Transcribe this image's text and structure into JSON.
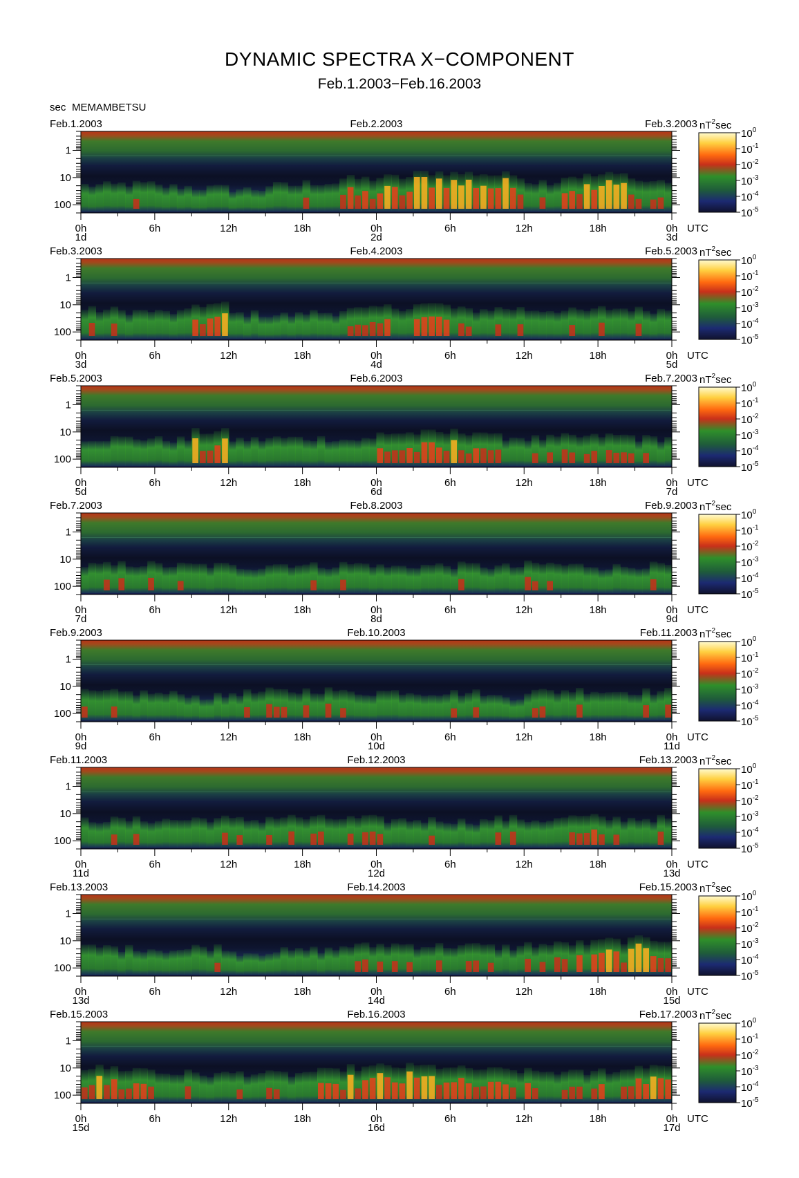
{
  "figure": {
    "title": "DYNAMIC SPECTRA X−COMPONENT",
    "subtitle": "Feb.1.2003−Feb.16.2003",
    "y_unit": "sec",
    "station": "MEMAMBETSU",
    "cbar_unit": "nT",
    "cbar_unit_sup": "2",
    "cbar_unit_suffix": "sec",
    "time_zone": "UTC"
  },
  "chart_data": {
    "type": "heatmap",
    "component": "X",
    "y_axis": {
      "label": "sec",
      "ticks": [
        "1",
        "10",
        "100"
      ],
      "scale": "log",
      "range": [
        0.2,
        200
      ]
    },
    "x_axis": {
      "ticks": [
        "0h",
        "6h",
        "12h",
        "18h",
        "0h",
        "6h",
        "12h",
        "18h",
        "0h"
      ],
      "unit": "UTC"
    },
    "colorbar": {
      "unit": "nT²sec",
      "scale": "log",
      "range": [
        1e-05,
        1
      ],
      "ticks": [
        {
          "base": "10",
          "exp": "0"
        },
        {
          "base": "10",
          "exp": "-1"
        },
        {
          "base": "10",
          "exp": "-2"
        },
        {
          "base": "10",
          "exp": "-3"
        },
        {
          "base": "10",
          "exp": "-4"
        },
        {
          "base": "10",
          "exp": "-5"
        }
      ],
      "colors": [
        "#10122e",
        "#1c2a72",
        "#1f5c3a",
        "#2f8f2a",
        "#c8301a",
        "#ff6a10",
        "#ffd040",
        "#fffbd0"
      ]
    },
    "panels": [
      {
        "start_date": "Feb.1.2003",
        "mid_date": "Feb.2.2003",
        "end_date": "Feb.3.2003",
        "day_labels": [
          "1d",
          "2d",
          "3d"
        ],
        "activity": [
          0.45,
          0.5,
          0.4,
          0.35,
          0.3,
          0.45,
          0.55,
          0.7,
          0.75,
          0.95,
          0.9,
          0.85,
          0.6,
          0.8,
          0.85,
          0.6
        ]
      },
      {
        "start_date": "Feb.3.2003",
        "mid_date": "Feb.4.2003",
        "end_date": "Feb.5.2003",
        "day_labels": [
          "3d",
          "4d",
          "5d"
        ],
        "activity": [
          0.55,
          0.5,
          0.45,
          0.75,
          0.4,
          0.35,
          0.45,
          0.55,
          0.65,
          0.75,
          0.55,
          0.6,
          0.55,
          0.5,
          0.6,
          0.55
        ]
      },
      {
        "start_date": "Feb.5.2003",
        "mid_date": "Feb.6.2003",
        "end_date": "Feb.7.2003",
        "day_labels": [
          "5d",
          "6d",
          "7d"
        ],
        "activity": [
          0.5,
          0.5,
          0.45,
          0.75,
          0.45,
          0.5,
          0.5,
          0.45,
          0.7,
          0.7,
          0.75,
          0.55,
          0.5,
          0.55,
          0.6,
          0.5
        ]
      },
      {
        "start_date": "Feb.7.2003",
        "mid_date": "Feb.8.2003",
        "end_date": "Feb.9.2003",
        "day_labels": [
          "7d",
          "8d",
          "9d"
        ],
        "activity": [
          0.5,
          0.55,
          0.5,
          0.5,
          0.45,
          0.55,
          0.5,
          0.55,
          0.45,
          0.5,
          0.5,
          0.45,
          0.55,
          0.5,
          0.45,
          0.5
        ]
      },
      {
        "start_date": "Feb.9.2003",
        "mid_date": "Feb.10.2003",
        "end_date": "Feb.11.2003",
        "day_labels": [
          "9d",
          "10d",
          "11d"
        ],
        "activity": [
          0.5,
          0.5,
          0.45,
          0.35,
          0.5,
          0.55,
          0.6,
          0.5,
          0.55,
          0.5,
          0.5,
          0.35,
          0.55,
          0.6,
          0.55,
          0.55
        ]
      },
      {
        "start_date": "Feb.11.2003",
        "mid_date": "Feb.12.2003",
        "end_date": "Feb.13.2003",
        "day_labels": [
          "11d",
          "12d",
          "13d"
        ],
        "activity": [
          0.5,
          0.5,
          0.5,
          0.55,
          0.5,
          0.6,
          0.55,
          0.55,
          0.5,
          0.5,
          0.45,
          0.55,
          0.5,
          0.6,
          0.55,
          0.55
        ]
      },
      {
        "start_date": "Feb.13.2003",
        "mid_date": "Feb.14.2003",
        "end_date": "Feb.15.2003",
        "day_labels": [
          "13d",
          "14d",
          "15d"
        ],
        "activity": [
          0.5,
          0.45,
          0.4,
          0.5,
          0.3,
          0.35,
          0.4,
          0.55,
          0.6,
          0.55,
          0.55,
          0.5,
          0.6,
          0.65,
          0.75,
          0.8
        ]
      },
      {
        "start_date": "Feb.15.2003",
        "mid_date": "Feb.16.2003",
        "end_date": "Feb.17.2003",
        "day_labels": [
          "15d",
          "16d",
          "17d"
        ],
        "activity": [
          0.75,
          0.7,
          0.55,
          0.5,
          0.55,
          0.5,
          0.6,
          0.75,
          0.8,
          0.8,
          0.7,
          0.65,
          0.6,
          0.55,
          0.65,
          0.85
        ]
      }
    ]
  }
}
